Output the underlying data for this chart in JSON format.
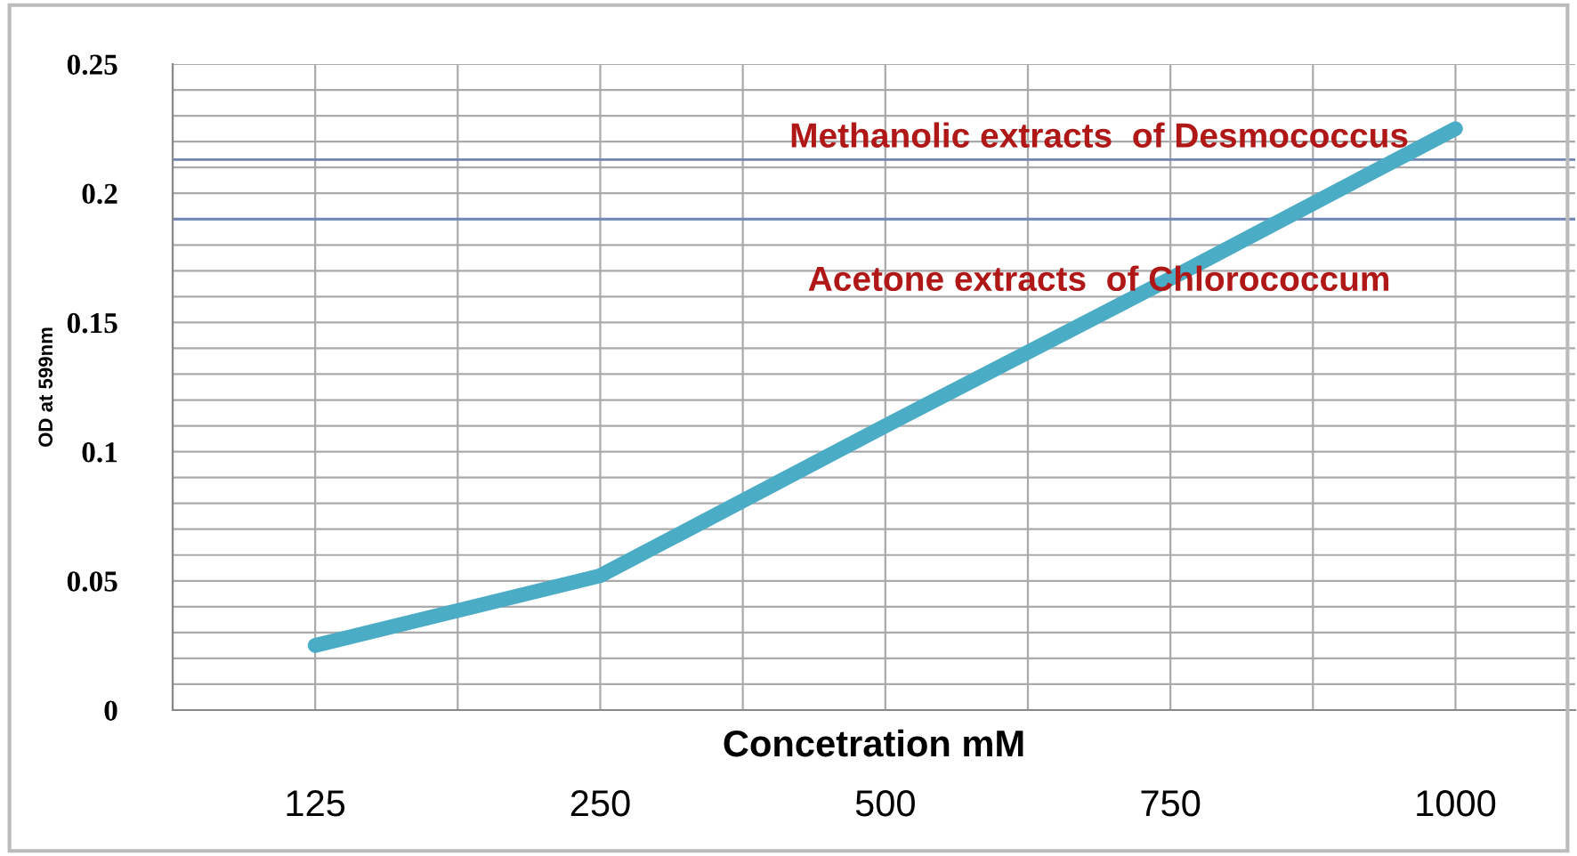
{
  "chart_data": {
    "type": "line",
    "xlabel": "Concetration mM",
    "ylabel": "OD at 599nm",
    "categories": [
      "125",
      "250",
      "500",
      "750",
      "1000"
    ],
    "series": [
      {
        "color": "#4bacc6",
        "values": [
          0.025,
          0.052,
          0.11,
          0.167,
          0.225
        ]
      }
    ],
    "ylim": [
      0,
      0.25
    ],
    "yticks": [
      0,
      {
        "value": 0.01,
        "label": null
      },
      {
        "value": 0.02,
        "label": null
      },
      {
        "value": 0.03,
        "label": null
      },
      {
        "value": 0.04,
        "label": null
      },
      0.05,
      {
        "value": 0.06,
        "label": null
      },
      {
        "value": 0.07,
        "label": null
      },
      {
        "value": 0.08,
        "label": null
      },
      {
        "value": 0.09,
        "label": null
      },
      0.1,
      {
        "value": 0.11,
        "label": null
      },
      {
        "value": 0.12,
        "label": null
      },
      {
        "value": 0.13,
        "label": null
      },
      {
        "value": 0.14,
        "label": null
      },
      0.15,
      {
        "value": 0.16,
        "label": null
      },
      {
        "value": 0.17,
        "label": null
      },
      {
        "value": 0.18,
        "label": null
      },
      {
        "value": 0.19,
        "label": null
      },
      0.2,
      {
        "value": 0.21,
        "label": null
      },
      {
        "value": 0.22,
        "label": null
      },
      {
        "value": 0.23,
        "label": null
      },
      {
        "value": 0.24,
        "label": null
      },
      0.25
    ],
    "ref_lines": [
      {
        "axis": "y",
        "value": 0.213,
        "label": "Methanolic extracts  of Desmococcus",
        "color": "#6f86b5"
      },
      {
        "axis": "y",
        "value": 0.19,
        "label": "Acetone extracts  of Chlorococcum",
        "color": "#6f86b5"
      }
    ],
    "grid": true,
    "marker": "none",
    "line_style": "solid"
  }
}
